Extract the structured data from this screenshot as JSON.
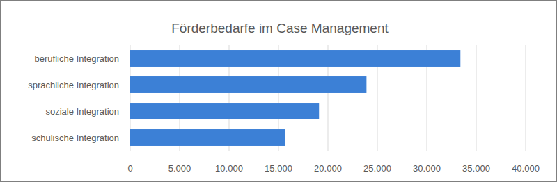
{
  "chart_data": {
    "type": "bar",
    "title": "Förderbedarfe im Case Management",
    "orientation": "horizontal",
    "categories": [
      "berufliche Integration",
      "sprachliche Integration",
      "soziale Integration",
      "schulische Integration"
    ],
    "values": [
      33400,
      23900,
      19100,
      15700
    ],
    "color": "#3c80d6",
    "xlim": [
      0,
      40000
    ],
    "xticks": [
      0,
      {
        "value": 5000,
        "label": "5.000"
      },
      {
        "value": 10000,
        "label": "10.000"
      },
      {
        "value": 15000,
        "label": "15.000"
      },
      {
        "value": 20000,
        "label": "20.000"
      },
      {
        "value": 25000,
        "label": "25.000"
      },
      {
        "value": 30000,
        "label": "30.000"
      },
      {
        "value": 35000,
        "label": "35.000"
      },
      {
        "value": 40000,
        "label": "40.000"
      }
    ],
    "grid": true
  }
}
